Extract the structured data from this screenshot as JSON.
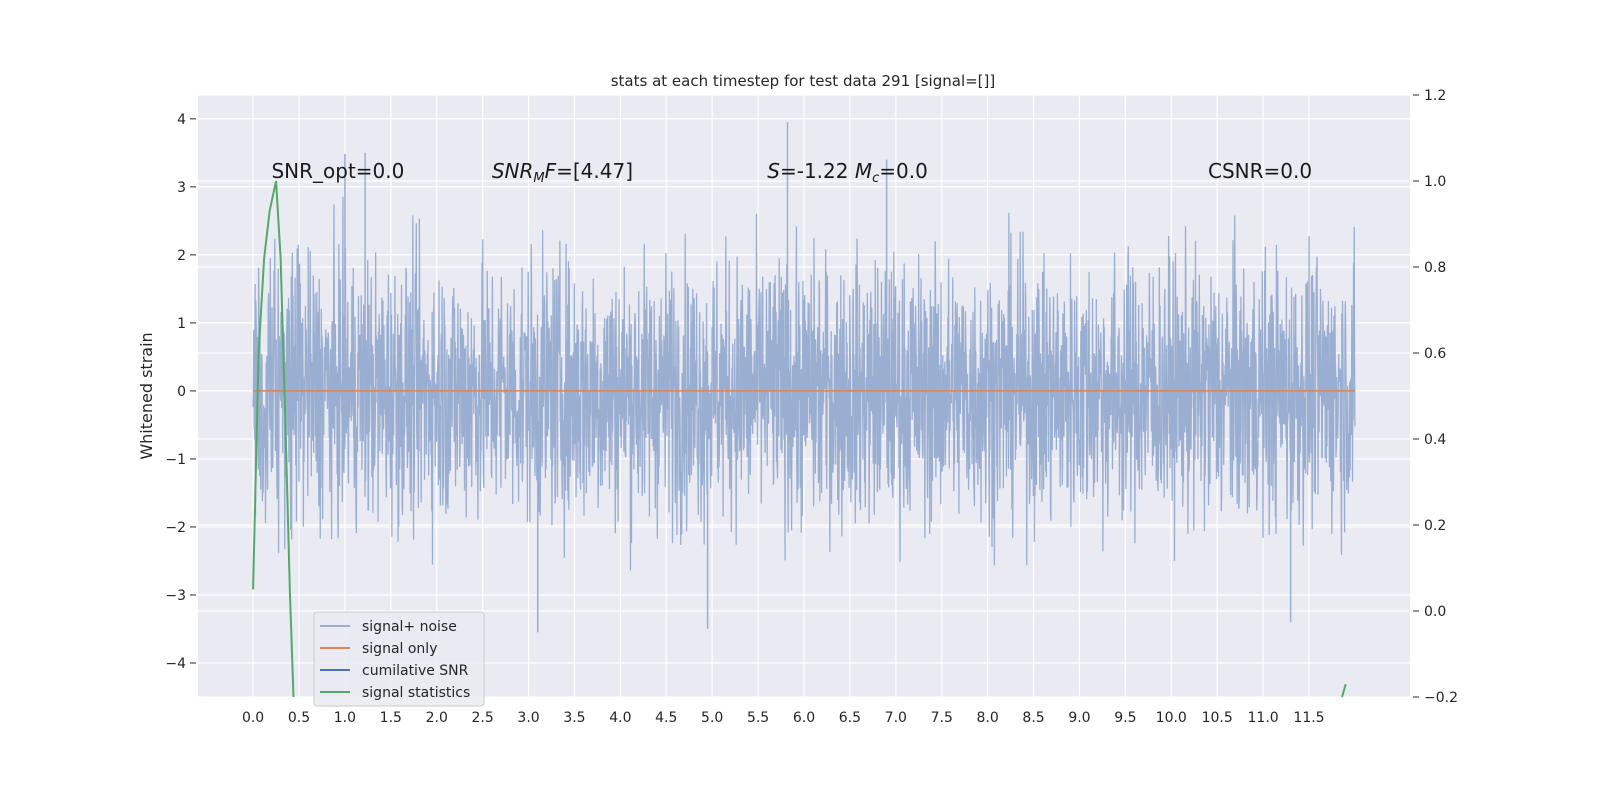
{
  "chart_data": {
    "type": "line",
    "title": "stats at each timestep for test data 291 [signal=[]]",
    "xlabel": "",
    "ylabel": "Whitened strain",
    "y2label": "",
    "xlim": [
      -0.6,
      12.6
    ],
    "ylim": [
      -4.5,
      4.35
    ],
    "y2lim": [
      -0.2,
      1.2
    ],
    "x_ticks": [
      "0.0",
      "0.5",
      "1.0",
      "1.5",
      "2.0",
      "2.5",
      "3.0",
      "3.5",
      "4.0",
      "4.5",
      "5.0",
      "5.5",
      "6.0",
      "6.5",
      "7.0",
      "7.5",
      "8.0",
      "8.5",
      "9.0",
      "9.5",
      "10.0",
      "10.5",
      "11.0",
      "11.5"
    ],
    "y_ticks": [
      -4,
      -3,
      -2,
      -1,
      0,
      1,
      2,
      3,
      4
    ],
    "y2_ticks": [
      "−0.2",
      "0.0",
      "0.2",
      "0.4",
      "0.6",
      "0.8",
      "1.0",
      "1.2"
    ],
    "grid": true,
    "legend_position": "lower-left",
    "colors": {
      "plot_bg": "#eaeaf2",
      "noise": "#9aaed1",
      "signal": "#dd8452",
      "cumulative": "#4c72b0",
      "statistics": "#55a868"
    },
    "series": [
      {
        "name": "signal+ noise",
        "axis": "left",
        "description_points": "dense noise band between about -2.5 and 2.5 over t=0 to 12.0",
        "envelope": {
          "x_start": 0.0,
          "x_end": 12.0,
          "typical_low": -2.0,
          "typical_high": 2.1,
          "max": 3.95,
          "min": -3.55
        }
      },
      {
        "name": "signal only",
        "axis": "left",
        "x": [
          0.0,
          12.0
        ],
        "y": [
          0.0,
          0.0
        ]
      },
      {
        "name": "cumilative SNR",
        "axis": "right",
        "x": [],
        "y": []
      },
      {
        "name": "signal statistics",
        "axis": "right",
        "x": [
          0.0,
          0.06,
          0.12,
          0.18,
          0.25,
          0.3,
          0.35,
          0.4,
          0.44
        ],
        "y": [
          0.05,
          0.6,
          0.82,
          0.93,
          1.0,
          0.82,
          0.45,
          0.05,
          -0.2
        ],
        "x_tail": [
          11.86,
          11.9
        ],
        "y_tail": [
          -0.2,
          -0.17
        ]
      }
    ],
    "annotations": [
      {
        "id": "snr-opt",
        "text": "SNR_opt=0.0",
        "x": 0.2,
        "y": 3.1
      },
      {
        "id": "snr-mf",
        "text_main": "SNR",
        "text_sub": "M",
        "text_rest": "F=[4.47]",
        "x": 2.6,
        "y": 3.1
      },
      {
        "id": "s-mc",
        "text_main": "S",
        "text_mid": "=-1.22  ",
        "text_m": "M",
        "text_sub": "c",
        "text_rest": "=0.0",
        "x": 5.6,
        "y": 3.1
      },
      {
        "id": "csnr",
        "text": "CSNR=0.0",
        "x": 10.4,
        "y": 3.1
      }
    ]
  }
}
